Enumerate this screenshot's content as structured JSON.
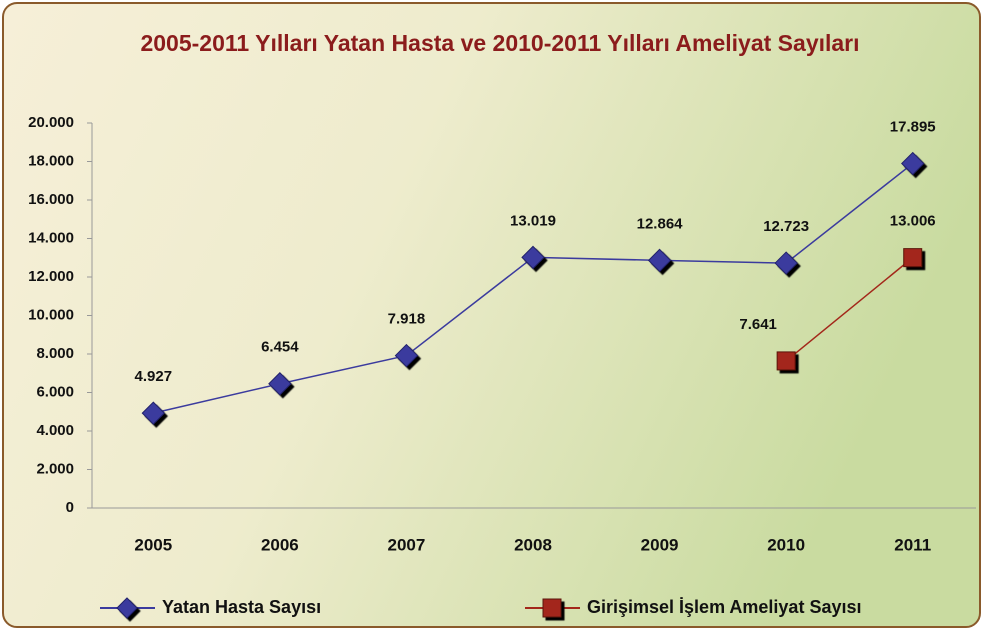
{
  "chart_data": {
    "type": "line",
    "title": "2005-2011 Yılları  Yatan Hasta ve 2010-2011 Yılları Ameliyat Sayıları",
    "categories": [
      "2005",
      "2006",
      "2007",
      "2008",
      "2009",
      "2010",
      "2011"
    ],
    "series": [
      {
        "name": "Yatan Hasta Sayısı",
        "color": "#3b3b9e",
        "marker": "diamond",
        "values": [
          4927,
          6454,
          7918,
          13019,
          12864,
          12723,
          17895
        ],
        "value_labels": [
          "4.927",
          "6.454",
          "7.918",
          "13.019",
          "12.864",
          "12.723",
          "17.895"
        ]
      },
      {
        "name": "Girişimsel İşlem Ameliyat Sayısı",
        "color": "#a3271a",
        "marker": "square",
        "values": [
          null,
          null,
          null,
          null,
          null,
          7641,
          13006
        ],
        "value_labels": [
          null,
          null,
          null,
          null,
          null,
          "7.641",
          "13.006"
        ]
      }
    ],
    "ylim": [
      0,
      20000
    ],
    "yticks": [
      0,
      {
        "value": 2000,
        "label": "2.000"
      },
      {
        "value": 4000,
        "label": "4.000"
      },
      {
        "value": 6000,
        "label": "6.000"
      },
      {
        "value": 8000,
        "label": "8.000"
      },
      {
        "value": 10000,
        "label": "10.000"
      },
      {
        "value": 12000,
        "label": "12.000"
      },
      {
        "value": 14000,
        "label": "14.000"
      },
      {
        "value": 16000,
        "label": "16.000"
      },
      {
        "value": 18000,
        "label": "18.000"
      },
      {
        "value": 20000,
        "label": "20.000"
      }
    ],
    "grid": false,
    "legend": "bottom"
  }
}
